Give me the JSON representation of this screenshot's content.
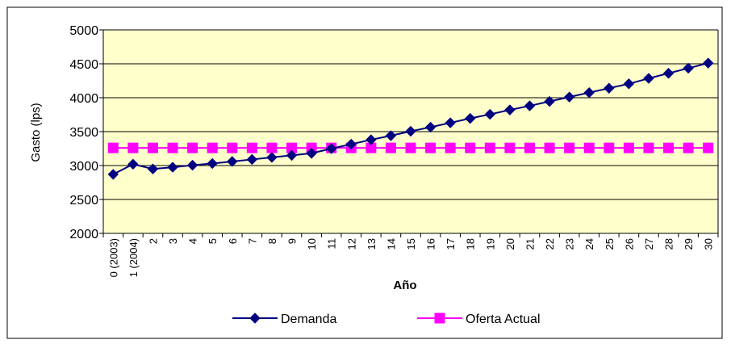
{
  "chart_data": {
    "type": "line",
    "title": "",
    "xlabel": "Año",
    "ylabel": "Gasto (lps)",
    "ylim": [
      2000,
      5000
    ],
    "yticks": [
      2000,
      2500,
      3000,
      3500,
      4000,
      4500,
      5000
    ],
    "grid": "horizontal",
    "legend_position": "bottom",
    "plot_background": "#FFFFCC",
    "categories": [
      "0 (2003)",
      "1 (2004)",
      "2",
      "3",
      "4",
      "5",
      "6",
      "7",
      "8",
      "9",
      "10",
      "11",
      "12",
      "13",
      "14",
      "15",
      "16",
      "17",
      "18",
      "19",
      "20",
      "21",
      "22",
      "23",
      "24",
      "25",
      "26",
      "27",
      "28",
      "29",
      "30"
    ],
    "series": [
      {
        "name": "Demanda",
        "color": "#000080",
        "marker": "diamond",
        "values": [
          2870,
          3020,
          2950,
          2975,
          3005,
          3030,
          3060,
          3090,
          3120,
          3150,
          3180,
          3250,
          3315,
          3380,
          3440,
          3505,
          3565,
          3630,
          3695,
          3755,
          3820,
          3880,
          3945,
          4010,
          4075,
          4140,
          4205,
          4285,
          4360,
          4435,
          4510
        ]
      },
      {
        "name": "Oferta Actual",
        "color": "#FF00FF",
        "marker": "square",
        "values": [
          3260,
          3260,
          3260,
          3260,
          3260,
          3260,
          3260,
          3260,
          3260,
          3260,
          3260,
          3260,
          3260,
          3260,
          3260,
          3260,
          3260,
          3260,
          3260,
          3260,
          3260,
          3260,
          3260,
          3260,
          3260,
          3260,
          3260,
          3260,
          3260,
          3260,
          3260
        ]
      }
    ]
  }
}
